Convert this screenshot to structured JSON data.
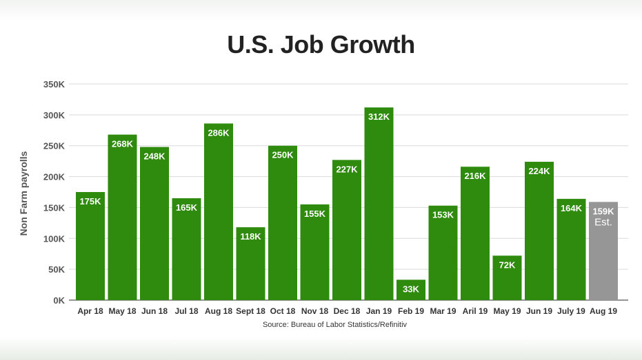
{
  "chart_data": {
    "type": "bar",
    "title": "U.S. Job Growth",
    "ylabel": "Non Farm payrolls",
    "xlabel": "",
    "source": "Source: Bureau of Labor Statistics/Refinitiv",
    "ylim": [
      0,
      350
    ],
    "yticks": [
      0,
      50,
      100,
      150,
      200,
      250,
      300,
      350
    ],
    "ytick_labels": [
      "0K",
      "50K",
      "100K",
      "150K",
      "200K",
      "250K",
      "300K",
      "350K"
    ],
    "grid": true,
    "categories": [
      "Apr 18",
      "May 18",
      "Jun 18",
      "Jul 18",
      "Aug 18",
      "Sept 18",
      "Oct 18",
      "Nov 18",
      "Dec 18",
      "Jan 19",
      "Feb 19",
      "Mar 19",
      "Aril 19",
      "May 19",
      "Jun 19",
      "July 19",
      "Aug 19"
    ],
    "values": [
      175,
      268,
      248,
      165,
      286,
      118,
      250,
      155,
      227,
      312,
      33,
      153,
      216,
      72,
      224,
      164,
      159
    ],
    "data_labels": [
      "175K",
      "268K",
      "248K",
      "165K",
      "286K",
      "118K",
      "250K",
      "155K",
      "227K",
      "312K",
      "33K",
      "153K",
      "216K",
      "72K",
      "224K",
      "164K",
      "159K"
    ],
    "estimate_index": 16,
    "estimate_note": "Est.",
    "colors": {
      "actual": "#2e8b0e",
      "estimate": "#969696",
      "grid": "#d9d9d9",
      "axis": "#555555"
    }
  }
}
